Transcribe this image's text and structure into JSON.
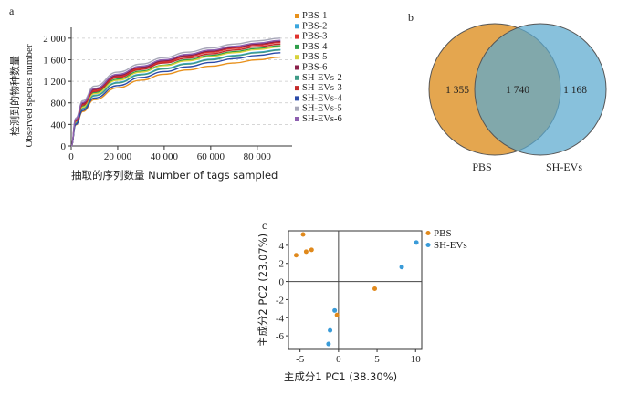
{
  "panels": {
    "a": "a",
    "b": "b",
    "c": "c"
  },
  "chart_data": [
    {
      "type": "line",
      "xlabel": "抽取的序列数量  Number of tags sampled",
      "ylabel_cn": "检测到的物种数量",
      "ylabel_en": "Observed species number",
      "xlim": [
        0,
        95000
      ],
      "ylim": [
        0,
        2150
      ],
      "xticks": [
        0,
        20000,
        40000,
        60000,
        80000
      ],
      "xtick_labels": [
        "0",
        "20 000",
        "40 000",
        "60 000",
        "80 000"
      ],
      "yticks": [
        0,
        400,
        800,
        1200,
        1600,
        2000
      ],
      "ytick_labels": [
        "0",
        "400",
        "800",
        "1 200",
        "1 600",
        "2 000"
      ],
      "grid": "horizontal dashed",
      "legend_position": "right",
      "x": [
        0,
        2000,
        5000,
        10000,
        20000,
        30000,
        40000,
        50000,
        60000,
        70000,
        80000,
        90000
      ],
      "series": [
        {
          "name": "PBS-1",
          "color": "#e8911c",
          "values": [
            0,
            390,
            640,
            860,
            1080,
            1220,
            1330,
            1410,
            1480,
            1540,
            1600,
            1650
          ]
        },
        {
          "name": "PBS-2",
          "color": "#3aa6dd",
          "values": [
            0,
            430,
            700,
            940,
            1180,
            1330,
            1440,
            1530,
            1610,
            1680,
            1740,
            1790
          ]
        },
        {
          "name": "PBS-3",
          "color": "#e0322d",
          "values": [
            0,
            470,
            770,
            1030,
            1290,
            1440,
            1560,
            1660,
            1740,
            1810,
            1870,
            1920
          ]
        },
        {
          "name": "PBS-4",
          "color": "#2f9e49",
          "values": [
            0,
            450,
            740,
            990,
            1240,
            1390,
            1500,
            1600,
            1680,
            1750,
            1810,
            1860
          ]
        },
        {
          "name": "PBS-5",
          "color": "#d7d23a",
          "values": [
            0,
            440,
            720,
            970,
            1220,
            1370,
            1490,
            1580,
            1660,
            1730,
            1790,
            1840
          ]
        },
        {
          "name": "PBS-6",
          "color": "#8a1f4a",
          "values": [
            0,
            480,
            790,
            1050,
            1310,
            1460,
            1580,
            1680,
            1760,
            1830,
            1890,
            1940
          ]
        },
        {
          "name": "SH-EVs-2",
          "color": "#3e9a86",
          "values": [
            0,
            420,
            690,
            930,
            1170,
            1320,
            1430,
            1520,
            1600,
            1670,
            1730,
            1780
          ]
        },
        {
          "name": "SH-EVs-3",
          "color": "#c42a2a",
          "values": [
            0,
            460,
            760,
            1010,
            1270,
            1420,
            1540,
            1630,
            1710,
            1780,
            1840,
            1890
          ]
        },
        {
          "name": "SH-EVs-4",
          "color": "#2b4aa8",
          "values": [
            0,
            400,
            660,
            890,
            1120,
            1270,
            1380,
            1470,
            1550,
            1620,
            1680,
            1730
          ]
        },
        {
          "name": "SH-EVs-5",
          "color": "#a7a7b8",
          "values": [
            0,
            520,
            840,
            1110,
            1370,
            1520,
            1640,
            1740,
            1820,
            1890,
            1950,
            2000
          ]
        },
        {
          "name": "SH-EVs-6",
          "color": "#8e5fb0",
          "values": [
            0,
            500,
            810,
            1070,
            1330,
            1480,
            1600,
            1700,
            1780,
            1850,
            1910,
            1960
          ]
        }
      ]
    },
    {
      "type": "venn",
      "sets": [
        {
          "name": "PBS",
          "color": "#e4a64f",
          "unique": "1 355"
        },
        {
          "name": "SH-EVs",
          "color": "#5aa9cf",
          "unique": "1 168"
        }
      ],
      "intersection": "1 740"
    },
    {
      "type": "scatter",
      "xlabel": "主成分1  PC1 (38.30%)",
      "ylabel": "主成分2  PC2 (23.07%)",
      "xlim": [
        -6.5,
        10.8
      ],
      "ylim": [
        -7.5,
        5.6
      ],
      "xticks": [
        -5,
        0,
        5,
        10
      ],
      "xtick_labels": [
        "-5",
        "0",
        "5",
        "10"
      ],
      "yticks": [
        -6,
        -4,
        -2,
        0,
        2,
        4
      ],
      "ytick_labels": [
        "-6",
        "-4",
        "-2",
        "0",
        "2",
        "4"
      ],
      "legend_position": "top-right outside",
      "series": [
        {
          "name": "PBS",
          "color": "#e0891c",
          "points": [
            [
              -5.5,
              2.9
            ],
            [
              -4.6,
              5.2
            ],
            [
              -4.2,
              3.3
            ],
            [
              -3.5,
              3.5
            ],
            [
              4.7,
              -0.8
            ],
            [
              -0.2,
              -3.7
            ]
          ]
        },
        {
          "name": "SH-EVs",
          "color": "#3a9bd8",
          "points": [
            [
              10.1,
              4.3
            ],
            [
              8.2,
              1.6
            ],
            [
              -0.5,
              -3.2
            ],
            [
              -1.1,
              -5.4
            ],
            [
              -1.3,
              -6.9
            ]
          ]
        }
      ]
    }
  ]
}
